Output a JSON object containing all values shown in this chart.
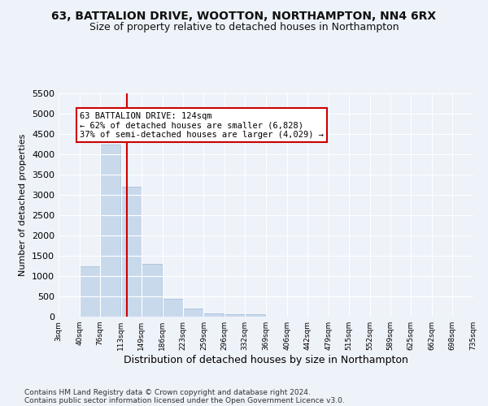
{
  "title": "63, BATTALION DRIVE, WOOTTON, NORTHAMPTON, NN4 6RX",
  "subtitle": "Size of property relative to detached houses in Northampton",
  "xlabel": "Distribution of detached houses by size in Northampton",
  "ylabel": "Number of detached properties",
  "footer_line1": "Contains HM Land Registry data © Crown copyright and database right 2024.",
  "footer_line2": "Contains public sector information licensed under the Open Government Licence v3.0.",
  "annotation_line1": "63 BATTALION DRIVE: 124sqm",
  "annotation_line2": "← 62% of detached houses are smaller (6,828)",
  "annotation_line3": "37% of semi-detached houses are larger (4,029) →",
  "bar_color": "#c9d9ec",
  "bar_edge_color": "#a0b8d8",
  "vline_color": "#cc0000",
  "vline_x": 124,
  "categories": [
    "3sqm",
    "40sqm",
    "76sqm",
    "113sqm",
    "149sqm",
    "186sqm",
    "223sqm",
    "259sqm",
    "296sqm",
    "332sqm",
    "369sqm",
    "406sqm",
    "442sqm",
    "479sqm",
    "515sqm",
    "552sqm",
    "589sqm",
    "625sqm",
    "662sqm",
    "698sqm",
    "735sqm"
  ],
  "bin_edges": [
    3,
    40,
    76,
    113,
    149,
    186,
    223,
    259,
    296,
    332,
    369,
    406,
    442,
    479,
    515,
    552,
    589,
    625,
    662,
    698,
    735
  ],
  "values": [
    0,
    1250,
    4250,
    3200,
    1300,
    450,
    200,
    80,
    60,
    60,
    0,
    0,
    0,
    0,
    0,
    0,
    0,
    0,
    0,
    0,
    0
  ],
  "ylim": [
    0,
    5500
  ],
  "yticks": [
    0,
    500,
    1000,
    1500,
    2000,
    2500,
    3000,
    3500,
    4000,
    4500,
    5000,
    5500
  ],
  "background_color": "#eef2f9",
  "grid_color": "#ffffff",
  "title_fontsize": 10,
  "subtitle_fontsize": 9,
  "footer_fontsize": 6.5,
  "annotation_box_color": "#ffffff",
  "annotation_box_edge": "#cc0000",
  "annotation_fontsize": 7.5,
  "ylabel_fontsize": 8,
  "xlabel_fontsize": 9
}
